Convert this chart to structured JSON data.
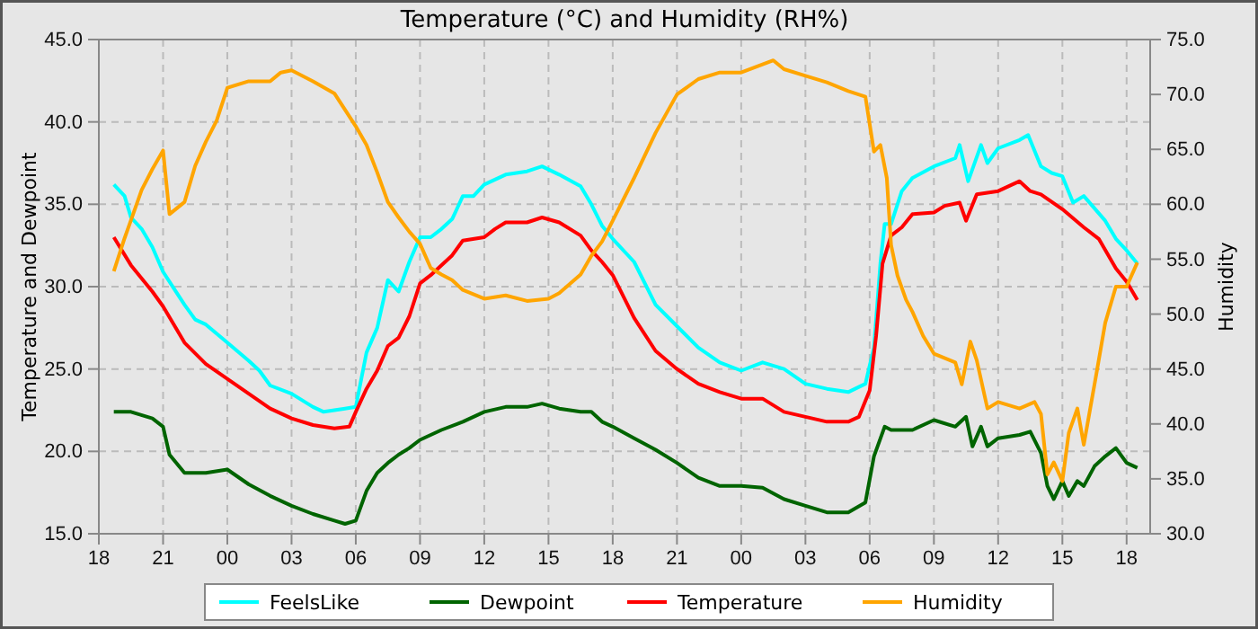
{
  "chart_data": {
    "type": "line",
    "title": "Temperature (°C) and Humidity (RH%)",
    "ylabel": "Temperature and Dewpoint",
    "y2label": "Humidity",
    "xlim": [
      18,
      67.1
    ],
    "xticks": [
      18,
      21,
      {
        "value": 24,
        "label": "00"
      },
      {
        "value": 27,
        "label": "03"
      },
      {
        "value": 30,
        "label": "06"
      },
      {
        "value": 33,
        "label": "09"
      },
      {
        "value": 36,
        "label": "12"
      },
      {
        "value": 39,
        "label": "15"
      },
      {
        "value": 42,
        "label": "18"
      },
      {
        "value": 45,
        "label": "21"
      },
      {
        "value": 48,
        "label": "00"
      },
      {
        "value": 51,
        "label": "03"
      },
      {
        "value": 54,
        "label": "06"
      },
      {
        "value": 57,
        "label": "09"
      },
      {
        "value": 60,
        "label": "12"
      },
      {
        "value": 63,
        "label": "15"
      },
      {
        "value": 66,
        "label": "18"
      }
    ],
    "ylim": [
      15,
      45
    ],
    "yticks": [
      {
        "value": 15,
        "label": "15.0"
      },
      {
        "value": 20,
        "label": "20.0"
      },
      {
        "value": 25,
        "label": "25.0"
      },
      {
        "value": 30,
        "label": "30.0"
      },
      {
        "value": 35,
        "label": "35.0"
      },
      {
        "value": 40,
        "label": "40.0"
      },
      {
        "value": 45,
        "label": "45.0"
      }
    ],
    "y2lim": [
      30,
      75
    ],
    "y2ticks": [
      {
        "value": 30,
        "label": "30.0"
      },
      {
        "value": 35,
        "label": "35.0"
      },
      {
        "value": 40,
        "label": "40.0"
      },
      {
        "value": 45,
        "label": "45.0"
      },
      {
        "value": 50,
        "label": "50.0"
      },
      {
        "value": 55,
        "label": "55.0"
      },
      {
        "value": 60,
        "label": "60.0"
      },
      {
        "value": 65,
        "label": "65.0"
      },
      {
        "value": 70,
        "label": "70.0"
      },
      {
        "value": 75,
        "label": "75.0"
      }
    ],
    "grid": true,
    "legend": "bottom",
    "marker": "none",
    "line_style": "solid",
    "series": [
      {
        "name": "FeelsLike",
        "color": "#00ffff",
        "x": [
          18.7,
          19.2,
          19.5,
          20,
          20.5,
          21,
          21.5,
          22,
          22.5,
          23,
          24,
          25,
          25.5,
          26,
          27,
          28,
          28.5,
          29.5,
          30,
          30.5,
          31,
          31.5,
          32,
          32.5,
          33,
          33.5,
          34,
          34.5,
          35,
          35.5,
          36,
          37,
          38,
          38.7,
          39.5,
          40.5,
          41,
          41.5,
          42,
          43,
          44,
          45,
          46,
          47,
          48,
          49,
          50,
          51,
          52,
          53,
          53.8,
          54.2,
          54.5,
          54.7,
          55,
          55.5,
          56,
          57,
          58,
          58.2,
          58.6,
          59.2,
          59.5,
          60,
          61,
          61.4,
          62,
          62.5,
          63,
          63.5,
          64,
          65,
          65.5,
          66,
          66.5
        ],
        "values": [
          36.2,
          35.5,
          34.2,
          33.5,
          32.4,
          30.9,
          29.9,
          28.9,
          28.0,
          27.7,
          26.6,
          25.5,
          24.9,
          24.0,
          23.5,
          22.7,
          22.4,
          22.6,
          22.7,
          26.0,
          27.5,
          30.4,
          29.7,
          31.5,
          33.0,
          33.0,
          33.5,
          34.1,
          35.5,
          35.5,
          36.2,
          36.8,
          37.0,
          37.3,
          36.8,
          36.1,
          35.0,
          33.7,
          32.9,
          31.5,
          28.9,
          27.6,
          26.3,
          25.4,
          24.9,
          25.4,
          25.0,
          24.1,
          23.8,
          23.6,
          24.1,
          26.3,
          31.4,
          33.8,
          33.8,
          35.8,
          36.6,
          37.3,
          37.8,
          38.6,
          36.4,
          38.6,
          37.5,
          38.4,
          38.9,
          39.2,
          37.3,
          36.9,
          36.7,
          35.1,
          35.5,
          34.0,
          32.9,
          32.2,
          31.4
        ]
      },
      {
        "name": "Dewpoint",
        "color": "#006400",
        "x": [
          18.7,
          19.5,
          20.5,
          21,
          21.3,
          22,
          23,
          24,
          25,
          26,
          27,
          28,
          29,
          29.5,
          30,
          30.5,
          31,
          31.5,
          32,
          32.5,
          33,
          34,
          35,
          36,
          37,
          38,
          38.7,
          39.5,
          40.5,
          41,
          41.5,
          42,
          43,
          44,
          45,
          46,
          47,
          48,
          49,
          50,
          51,
          52,
          53,
          53.8,
          54.2,
          54.7,
          55,
          56,
          57,
          58,
          58.5,
          58.8,
          59.2,
          59.5,
          60,
          61,
          61.5,
          62,
          62.3,
          62.6,
          63,
          63.3,
          63.7,
          64,
          64.5,
          65,
          65.5,
          66,
          66.5
        ],
        "values": [
          22.4,
          22.4,
          22.0,
          21.5,
          19.8,
          18.7,
          18.7,
          18.9,
          18.0,
          17.3,
          16.7,
          16.2,
          15.8,
          15.6,
          15.8,
          17.6,
          18.7,
          19.3,
          19.8,
          20.2,
          20.7,
          21.3,
          21.8,
          22.4,
          22.7,
          22.7,
          22.9,
          22.6,
          22.4,
          22.4,
          21.8,
          21.5,
          20.8,
          20.1,
          19.3,
          18.4,
          17.9,
          17.9,
          17.8,
          17.1,
          16.7,
          16.3,
          16.3,
          16.9,
          19.7,
          21.5,
          21.3,
          21.3,
          21.9,
          21.5,
          22.1,
          20.3,
          21.5,
          20.3,
          20.8,
          21.0,
          21.2,
          19.9,
          17.9,
          17.1,
          18.2,
          17.3,
          18.2,
          17.9,
          19.1,
          19.7,
          20.2,
          19.3,
          19.0
        ]
      },
      {
        "name": "Temperature",
        "color": "#ff0000",
        "x": [
          18.7,
          19.5,
          20.5,
          21,
          22,
          23,
          24,
          25,
          26,
          27,
          28,
          29,
          29.7,
          30,
          30.5,
          31,
          31.5,
          32,
          32.5,
          33,
          33.5,
          34,
          34.5,
          35,
          36,
          36.5,
          37,
          38,
          38.7,
          39.5,
          40.5,
          41,
          41.5,
          42,
          43,
          44,
          45,
          46,
          47,
          48,
          49,
          50,
          51,
          52,
          53,
          53.5,
          54,
          54.3,
          54.6,
          55,
          55.5,
          56,
          57,
          57.5,
          58.2,
          58.5,
          59,
          60,
          61,
          61.5,
          62,
          63,
          64,
          64.7,
          65.5,
          66,
          66.5
        ],
        "values": [
          33.0,
          31.3,
          29.7,
          28.8,
          26.6,
          25.3,
          24.4,
          23.5,
          22.6,
          22.0,
          21.6,
          21.4,
          21.5,
          22.4,
          23.8,
          24.9,
          26.4,
          26.9,
          28.2,
          30.2,
          30.7,
          31.3,
          31.9,
          32.8,
          33.0,
          33.5,
          33.9,
          33.9,
          34.2,
          33.9,
          33.1,
          32.2,
          31.5,
          30.7,
          28.1,
          26.1,
          25.0,
          24.1,
          23.6,
          23.2,
          23.2,
          22.4,
          22.1,
          21.8,
          21.8,
          22.1,
          23.7,
          27.0,
          31.4,
          33.1,
          33.6,
          34.4,
          34.5,
          34.9,
          35.1,
          34.0,
          35.6,
          35.8,
          36.4,
          35.8,
          35.6,
          34.7,
          33.6,
          32.9,
          31.1,
          30.3,
          29.2
        ]
      },
      {
        "name": "Humidity",
        "color": "#ffa500",
        "axis": "y2",
        "x": [
          18.7,
          19.2,
          19.6,
          20,
          20.5,
          21,
          21.3,
          22,
          22.5,
          23,
          23.5,
          24,
          25,
          26,
          26.5,
          27,
          28,
          29,
          30,
          30.5,
          31,
          31.5,
          32,
          32.5,
          33,
          33.5,
          34,
          34.5,
          35,
          36,
          37,
          38,
          39,
          39.5,
          40.5,
          41,
          41.5,
          42,
          43,
          44,
          45,
          46,
          47,
          48,
          49.5,
          50,
          51,
          52,
          53,
          53.8,
          54.2,
          54.5,
          54.8,
          55,
          55.3,
          55.7,
          56,
          56.5,
          57,
          58,
          58.3,
          58.7,
          59,
          59.5,
          60,
          61,
          61.7,
          62,
          62.3,
          62.6,
          63,
          63.3,
          63.7,
          64,
          64.3,
          64.6,
          65,
          65.5,
          66,
          66.5
        ],
        "values": [
          53.9,
          56.9,
          59.1,
          61.3,
          63.2,
          64.9,
          59.1,
          60.2,
          63.5,
          65.7,
          67.6,
          70.6,
          71.2,
          71.2,
          72.0,
          72.2,
          71.2,
          70.1,
          67.1,
          65.4,
          62.9,
          60.2,
          58.8,
          57.5,
          56.4,
          54.2,
          53.6,
          53.1,
          52.2,
          51.4,
          51.7,
          51.2,
          51.4,
          51.9,
          53.6,
          55.3,
          56.6,
          58.5,
          62.4,
          66.5,
          70.0,
          71.4,
          72.0,
          72.0,
          73.1,
          72.3,
          71.7,
          71.1,
          70.3,
          69.8,
          64.8,
          65.4,
          62.4,
          56.3,
          53.5,
          51.3,
          50.2,
          48.0,
          46.4,
          45.6,
          43.6,
          47.5,
          45.8,
          41.4,
          42.0,
          41.4,
          42.0,
          40.9,
          35.4,
          36.5,
          34.8,
          39.2,
          41.4,
          38.1,
          41.4,
          44.7,
          49.2,
          52.5,
          52.5,
          54.7
        ]
      }
    ]
  }
}
